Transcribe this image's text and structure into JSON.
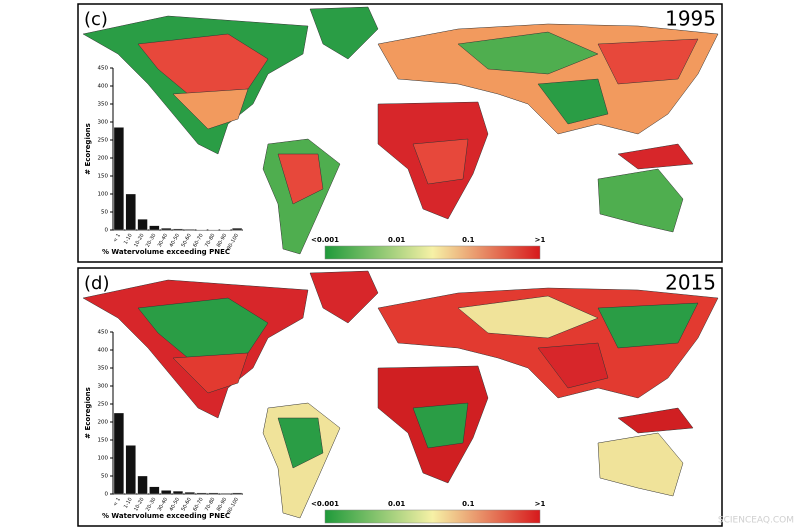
{
  "panels": [
    {
      "label": "(c)",
      "year": "1995",
      "histogram": {
        "type": "bar",
        "ylabel": "# Ecoregions",
        "xlabel": "% Watervolume exceeding PNEC",
        "categories": [
          "< 1",
          "1-10",
          "10-20",
          "20-30",
          "30-40",
          "40-50",
          "50-60",
          "60-70",
          "70-80",
          "80-90",
          "90-100"
        ],
        "values": [
          285,
          100,
          30,
          12,
          5,
          3,
          2,
          1,
          1,
          1,
          5
        ],
        "ylim": [
          0,
          450
        ],
        "yticks": [
          0,
          50,
          100,
          150,
          200,
          250,
          300,
          350,
          400,
          450
        ]
      },
      "colorbar": {
        "labels": [
          "<0.001",
          "0.01",
          "0.1",
          ">1"
        ]
      }
    },
    {
      "label": "(d)",
      "year": "2015",
      "histogram": {
        "type": "bar",
        "ylabel": "# Ecoregions",
        "xlabel": "% Watervolume exceeding PNEC",
        "categories": [
          "< 1",
          "1-10",
          "10-20",
          "20-30",
          "30-40",
          "40-50",
          "50-60",
          "60-70",
          "70-80",
          "80-90",
          "90-100"
        ],
        "values": [
          225,
          135,
          50,
          20,
          10,
          8,
          5,
          3,
          3,
          2,
          3
        ],
        "ylim": [
          0,
          450
        ],
        "yticks": [
          0,
          50,
          100,
          150,
          200,
          250,
          300,
          350,
          400,
          450
        ]
      },
      "colorbar": {
        "labels": [
          "<0.001",
          "0.01",
          "0.1",
          ">1"
        ]
      }
    }
  ],
  "watermark": "SCIENCEAQ.COM"
}
